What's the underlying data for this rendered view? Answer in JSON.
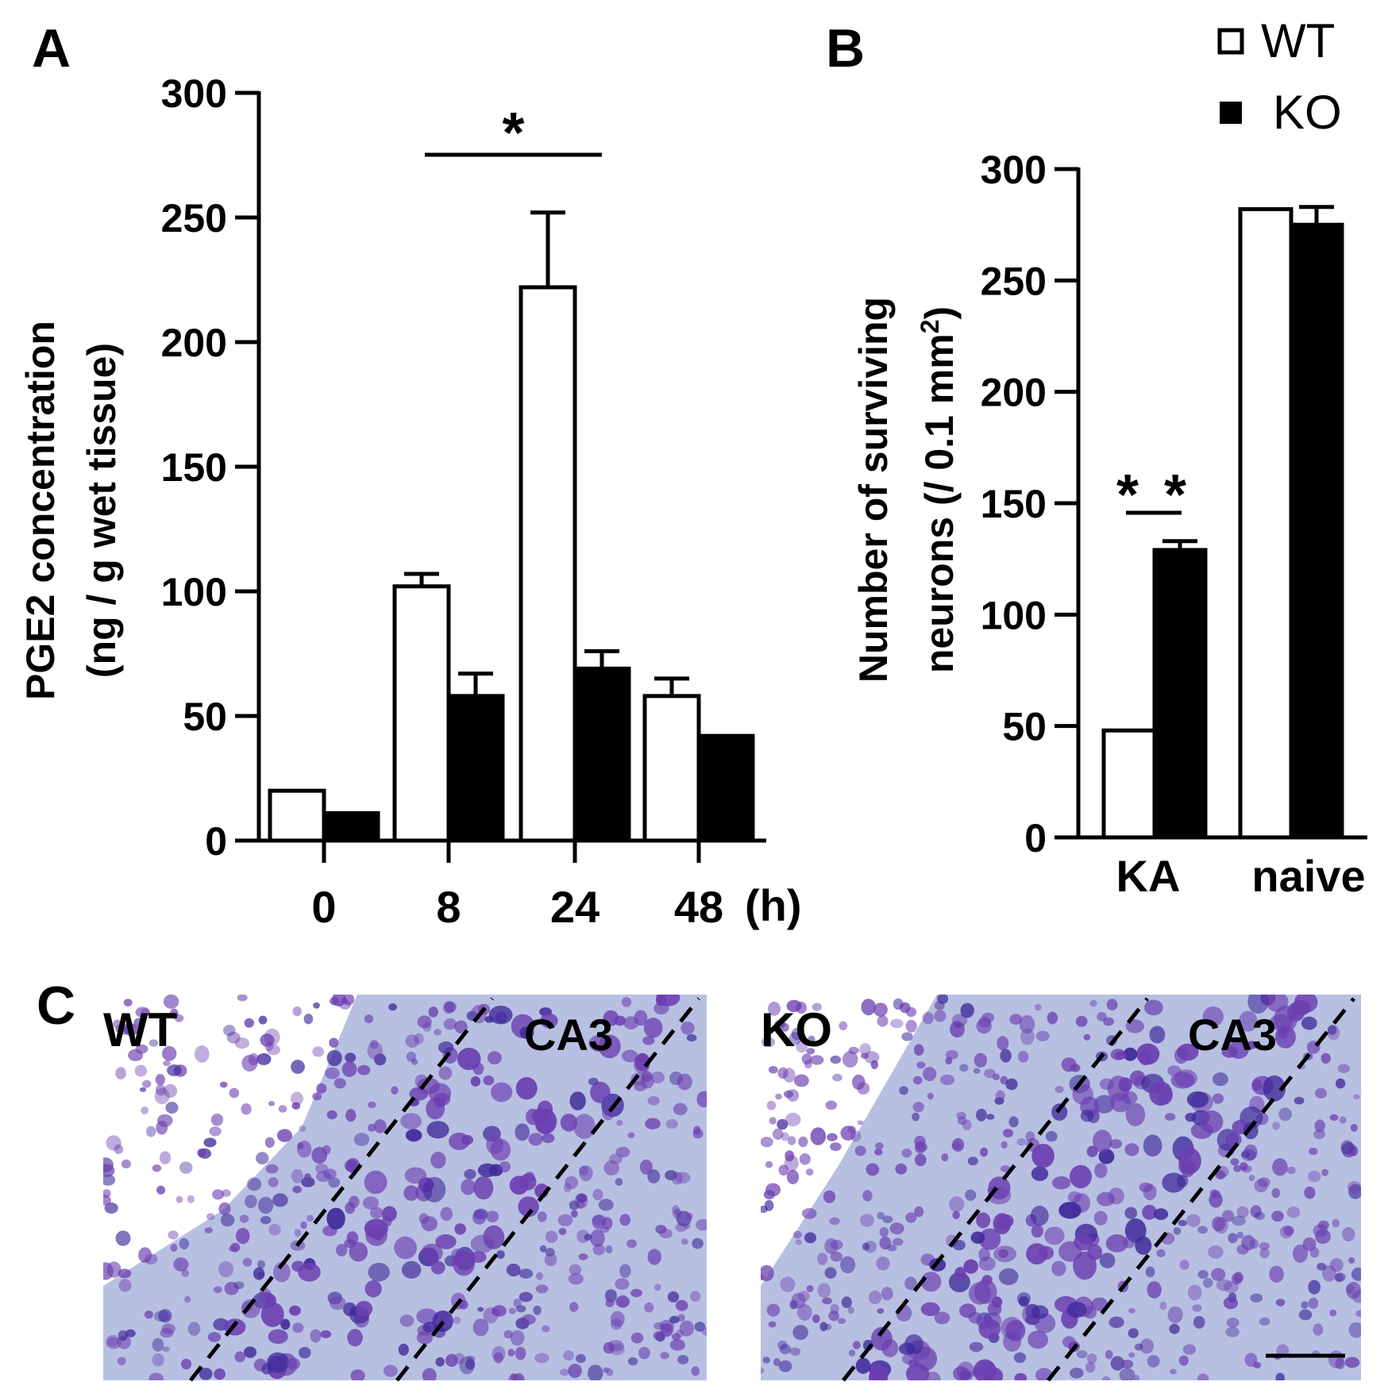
{
  "panel_labels": {
    "a": "A",
    "b": "B",
    "c": "C"
  },
  "legend": {
    "wt": "WT",
    "ko": "KO"
  },
  "colors": {
    "wt_fill": "#ffffff",
    "ko_fill": "#000000",
    "axis": "#000000",
    "tissue_bg": "#b8c0e2",
    "cell": "#6b3fb0",
    "cell_dark": "#3f2a9a"
  },
  "chart_data": [
    {
      "id": "A",
      "type": "bar",
      "categories": [
        "0",
        "8",
        "24",
        "48"
      ],
      "x_unit": "(h)",
      "ylabel_line1": "PGE2 concentration",
      "ylabel_line2": "(ng / g wet tissue)",
      "ylim": [
        0,
        300
      ],
      "yticks": [
        0,
        50,
        100,
        150,
        200,
        250,
        300
      ],
      "series": [
        {
          "name": "WT",
          "values": [
            20,
            102,
            222,
            58
          ],
          "errors": [
            0,
            5,
            30,
            7
          ]
        },
        {
          "name": "KO",
          "values": [
            11,
            58,
            69,
            42
          ],
          "errors": [
            0,
            9,
            7,
            0
          ]
        }
      ],
      "annotation": "*"
    },
    {
      "id": "B",
      "type": "bar",
      "categories": [
        "KA",
        "naive"
      ],
      "ylabel_line1": "Number of surviving",
      "ylabel_line2": "neurons  (/ 0.1 mm",
      "ylabel_sup": "2",
      "ylabel_tail": ")",
      "ylim": [
        0,
        300
      ],
      "yticks": [
        0,
        50,
        100,
        150,
        200,
        250,
        300
      ],
      "series": [
        {
          "name": "WT",
          "values": [
            48,
            282
          ],
          "errors": [
            0,
            0
          ]
        },
        {
          "name": "KO",
          "values": [
            129,
            275
          ],
          "errors": [
            4,
            8
          ]
        }
      ],
      "annotation": "* *"
    }
  ],
  "micrographs": [
    {
      "group": "WT",
      "region": "CA3"
    },
    {
      "group": "KO",
      "region": "CA3"
    }
  ]
}
